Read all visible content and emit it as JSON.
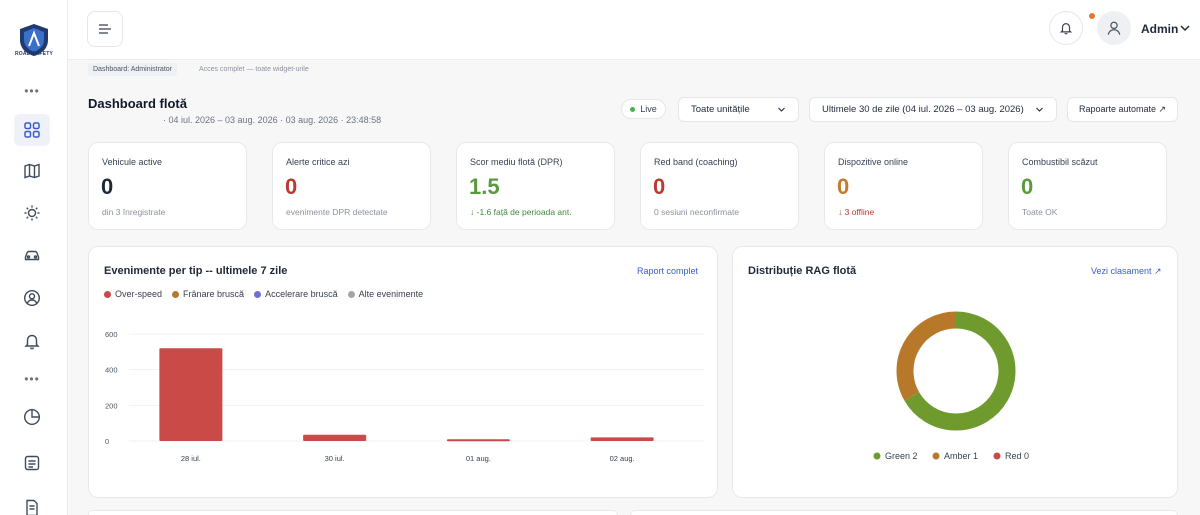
{
  "app": {
    "logo_text": "ROAD SAFETY"
  },
  "topbar": {
    "user_name": "Admin"
  },
  "breadcrumb": {
    "badge": "Dashboard: Administrator",
    "note": "Acces complet — toate widget-urile"
  },
  "page": {
    "title": "Dashboard flotă",
    "subtitle": "· 04 iul. 2026 – 03 aug. 2026 · 03 aug. 2026 · 23:48:58"
  },
  "filters": {
    "live_label": "Live",
    "units_select": "Toate unitățile",
    "period_select": "Ultimele 30 de zile (04 iul. 2026 – 03 aug. 2026)",
    "reports_button": "Rapoarte automate ↗"
  },
  "kpis": [
    {
      "label": "Vehicule active",
      "value": "0",
      "foot": "din 3 înregistrate",
      "color": "#1f2a37",
      "foot_color": "#8a919c"
    },
    {
      "label": "Alerte critice azi",
      "value": "0",
      "foot": "evenimente DPR detectate",
      "color": "#b83a32",
      "foot_color": "#8a919c"
    },
    {
      "label": "Scor mediu flotă (DPR)",
      "value": "1.5",
      "foot": "↓ -1.6 față de perioada ant.",
      "color": "#5a9a3e",
      "foot_color": "#3f8c3a"
    },
    {
      "label": "Red band (coaching)",
      "value": "0",
      "foot": "0 sesiuni neconfirmate",
      "color": "#b83a32",
      "foot_color": "#8a919c"
    },
    {
      "label": "Dispozitive online",
      "value": "0",
      "foot": "↓ 3 offline",
      "color": "#c47a2a",
      "foot_color": "#b83a32"
    },
    {
      "label": "Combustibil scăzut",
      "value": "0",
      "foot": "Toate OK",
      "color": "#5a9a3e",
      "foot_color": "#8a919c"
    }
  ],
  "events_panel": {
    "title": "Evenimente per tip -- ultimele 7 zile",
    "link": "Raport complet",
    "legend": [
      {
        "name": "Over-speed",
        "color": "#c94a47"
      },
      {
        "name": "Frânare bruscă",
        "color": "#b8782a"
      },
      {
        "name": "Accelerare bruscă",
        "color": "#6b6fd6"
      },
      {
        "name": "Alte evenimente",
        "color": "#a3a7ad"
      }
    ]
  },
  "rag_panel": {
    "title": "Distribuție RAG flotă",
    "link": "Vezi clasament ↗"
  },
  "chart_data": [
    {
      "type": "bar",
      "categories": [
        "28 iul.",
        "30 iul.",
        "01 aug.",
        "02 aug."
      ],
      "series": [
        {
          "name": "Over-speed",
          "values": [
            520,
            35,
            10,
            20
          ],
          "color": "#c94a47"
        }
      ],
      "yticks": [
        "0",
        "200",
        "400",
        "600"
      ],
      "ylim": [
        0,
        600
      ],
      "grid": true
    },
    {
      "type": "pie",
      "donut": true,
      "slices": [
        {
          "label": "Green",
          "value": 2,
          "color": "#6f9a2e"
        },
        {
          "label": "Amber",
          "value": 1,
          "color": "#b8782a"
        },
        {
          "label": "Red",
          "value": 0,
          "color": "#c94a47"
        }
      ],
      "legend": [
        "Green 2",
        "Amber 1",
        "Red 0"
      ],
      "legend_position": "bottom"
    }
  ]
}
